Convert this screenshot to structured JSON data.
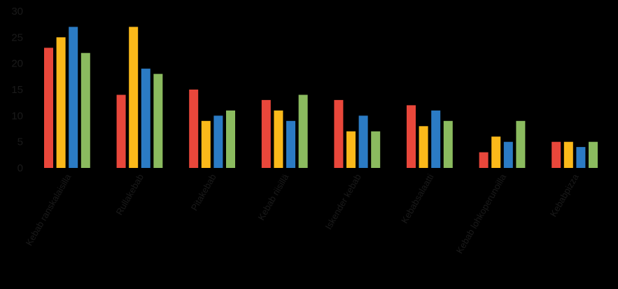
{
  "chart_data": {
    "type": "bar",
    "title": "",
    "xlabel": "",
    "ylabel": "",
    "ylim": [
      0,
      30
    ],
    "yticks": [
      0,
      5,
      10,
      15,
      20,
      25,
      30
    ],
    "grid": false,
    "legend": "none",
    "categories": [
      "Kebab ranskalaisilla",
      "Rullakebab",
      "Pitakebab",
      "Kebab riisillä",
      "Iskender kebab",
      "Kebabsalaatti",
      "Kebab lohkoperunoilla",
      "Kebabpizza"
    ],
    "series": [
      {
        "color": "#E9473B",
        "values": [
          23,
          14,
          15,
          13,
          13,
          12,
          3,
          5
        ]
      },
      {
        "color": "#FBB91A",
        "values": [
          25,
          27,
          9,
          11,
          7,
          8,
          6,
          5
        ]
      },
      {
        "color": "#2B7BC4",
        "values": [
          27,
          19,
          10,
          9,
          10,
          11,
          5,
          4
        ]
      },
      {
        "color": "#8BBB5F",
        "values": [
          22,
          18,
          11,
          14,
          7,
          9,
          9,
          5
        ]
      }
    ]
  }
}
